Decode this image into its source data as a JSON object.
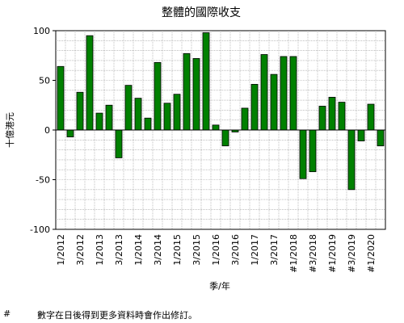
{
  "chart_data": {
    "type": "bar",
    "title": "整體的國際收支",
    "xlabel": "季/年",
    "ylabel": "十億港元",
    "ylim": [
      -100,
      100
    ],
    "yticks": [
      100,
      50,
      0,
      -50,
      -100
    ],
    "grid": true,
    "categories": [
      "1/2012",
      "2/2012",
      "3/2012",
      "4/2012",
      "1/2013",
      "2/2013",
      "3/2013",
      "4/2013",
      "1/2014",
      "2/2014",
      "3/2014",
      "4/2014",
      "1/2015",
      "2/2015",
      "3/2015",
      "4/2015",
      "1/2016",
      "2/2016",
      "3/2016",
      "4/2016",
      "1/2017",
      "2/2017",
      "3/2017",
      "4/2017",
      "#1/2018",
      "#2/2018",
      "#3/2018",
      "#4/2018",
      "#1/2019",
      "#2/2019",
      "#3/2019",
      "#4/2019",
      "#1/2020",
      "#2/2020"
    ],
    "tick_labels": [
      "1/2012",
      "3/2012",
      "1/2013",
      "3/2013",
      "1/2014",
      "3/2014",
      "1/2015",
      "3/2015",
      "1/2016",
      "3/2016",
      "1/2017",
      "3/2017",
      "#1/2018",
      "#3/2018",
      "#1/2019",
      "#3/2019",
      "#1/2020"
    ],
    "values": [
      64,
      -7,
      38,
      95,
      17,
      25,
      -28,
      45,
      32,
      12,
      68,
      27,
      36,
      77,
      72,
      98,
      5,
      -16,
      -2,
      22,
      46,
      76,
      56,
      74,
      74,
      -49,
      -42,
      24,
      33,
      28,
      -60,
      -11,
      26,
      -16
    ],
    "bar_color": "#008000"
  },
  "footnote": {
    "marker": "#",
    "text": "數字在日後得到更多資料時會作出修訂。"
  }
}
